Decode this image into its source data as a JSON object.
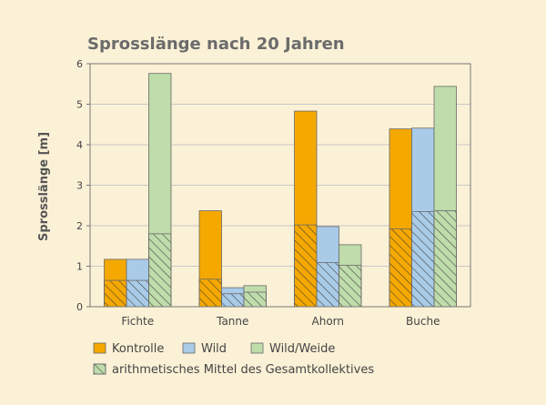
{
  "chart_data": {
    "type": "bar",
    "title": "Sprosslänge nach 20 Jahren",
    "xlabel": "",
    "ylabel": "Sprosslänge [m]",
    "ylim": [
      0,
      6
    ],
    "yticks": [
      "0",
      "1",
      "2",
      "3",
      "4",
      "5",
      "6"
    ],
    "categories": [
      "Fichte",
      "Tanne",
      "Ahorn",
      "Buche"
    ],
    "grid": true,
    "legend_position": "bottom",
    "series": [
      {
        "name": "Kontrolle",
        "color": "#f5a800",
        "values": [
          1.17,
          2.37,
          4.83,
          4.39
        ],
        "mean": [
          0.65,
          0.68,
          2.02,
          1.92
        ]
      },
      {
        "name": "Wild",
        "color": "#a9cbe8",
        "values": [
          1.17,
          0.47,
          1.98,
          4.41
        ],
        "mean": [
          0.65,
          0.32,
          1.09,
          2.35
        ]
      },
      {
        "name": "Wild/Weide",
        "color": "#bfdcab",
        "values": [
          5.76,
          0.52,
          1.53,
          5.44
        ],
        "mean": [
          1.8,
          0.36,
          1.02,
          2.37
        ]
      }
    ],
    "hatch_legend": "arithmetisches Mittel des Gesamtkollektives"
  }
}
